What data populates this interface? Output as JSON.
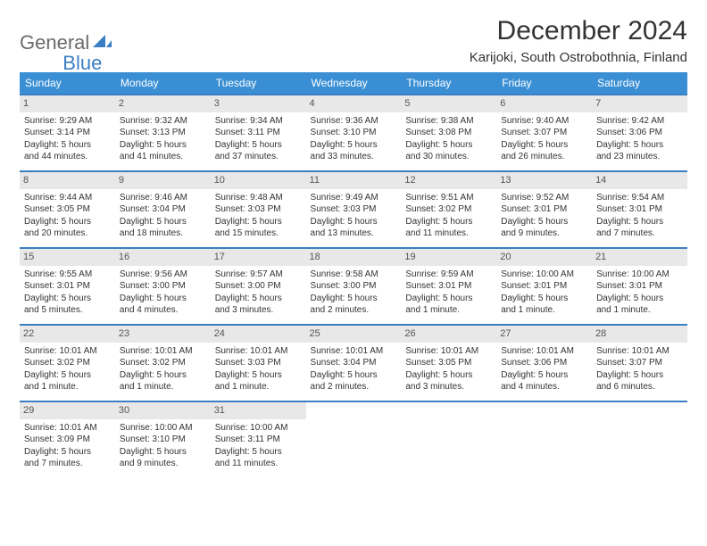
{
  "logo": {
    "part1": "General",
    "part2": "Blue"
  },
  "title": "December 2024",
  "location": "Karijoki, South Ostrobothnia, Finland",
  "colors": {
    "header_bg": "#3a8fd4",
    "header_text": "#ffffff",
    "border": "#3a7fc4",
    "daynum_bg": "#e8e8e8",
    "logo_gray": "#6b6b6b",
    "logo_blue": "#3a7fc4"
  },
  "weekdays": [
    "Sunday",
    "Monday",
    "Tuesday",
    "Wednesday",
    "Thursday",
    "Friday",
    "Saturday"
  ],
  "days": [
    {
      "n": "1",
      "sr": "Sunrise: 9:29 AM",
      "ss": "Sunset: 3:14 PM",
      "d1": "Daylight: 5 hours",
      "d2": "and 44 minutes."
    },
    {
      "n": "2",
      "sr": "Sunrise: 9:32 AM",
      "ss": "Sunset: 3:13 PM",
      "d1": "Daylight: 5 hours",
      "d2": "and 41 minutes."
    },
    {
      "n": "3",
      "sr": "Sunrise: 9:34 AM",
      "ss": "Sunset: 3:11 PM",
      "d1": "Daylight: 5 hours",
      "d2": "and 37 minutes."
    },
    {
      "n": "4",
      "sr": "Sunrise: 9:36 AM",
      "ss": "Sunset: 3:10 PM",
      "d1": "Daylight: 5 hours",
      "d2": "and 33 minutes."
    },
    {
      "n": "5",
      "sr": "Sunrise: 9:38 AM",
      "ss": "Sunset: 3:08 PM",
      "d1": "Daylight: 5 hours",
      "d2": "and 30 minutes."
    },
    {
      "n": "6",
      "sr": "Sunrise: 9:40 AM",
      "ss": "Sunset: 3:07 PM",
      "d1": "Daylight: 5 hours",
      "d2": "and 26 minutes."
    },
    {
      "n": "7",
      "sr": "Sunrise: 9:42 AM",
      "ss": "Sunset: 3:06 PM",
      "d1": "Daylight: 5 hours",
      "d2": "and 23 minutes."
    },
    {
      "n": "8",
      "sr": "Sunrise: 9:44 AM",
      "ss": "Sunset: 3:05 PM",
      "d1": "Daylight: 5 hours",
      "d2": "and 20 minutes."
    },
    {
      "n": "9",
      "sr": "Sunrise: 9:46 AM",
      "ss": "Sunset: 3:04 PM",
      "d1": "Daylight: 5 hours",
      "d2": "and 18 minutes."
    },
    {
      "n": "10",
      "sr": "Sunrise: 9:48 AM",
      "ss": "Sunset: 3:03 PM",
      "d1": "Daylight: 5 hours",
      "d2": "and 15 minutes."
    },
    {
      "n": "11",
      "sr": "Sunrise: 9:49 AM",
      "ss": "Sunset: 3:03 PM",
      "d1": "Daylight: 5 hours",
      "d2": "and 13 minutes."
    },
    {
      "n": "12",
      "sr": "Sunrise: 9:51 AM",
      "ss": "Sunset: 3:02 PM",
      "d1": "Daylight: 5 hours",
      "d2": "and 11 minutes."
    },
    {
      "n": "13",
      "sr": "Sunrise: 9:52 AM",
      "ss": "Sunset: 3:01 PM",
      "d1": "Daylight: 5 hours",
      "d2": "and 9 minutes."
    },
    {
      "n": "14",
      "sr": "Sunrise: 9:54 AM",
      "ss": "Sunset: 3:01 PM",
      "d1": "Daylight: 5 hours",
      "d2": "and 7 minutes."
    },
    {
      "n": "15",
      "sr": "Sunrise: 9:55 AM",
      "ss": "Sunset: 3:01 PM",
      "d1": "Daylight: 5 hours",
      "d2": "and 5 minutes."
    },
    {
      "n": "16",
      "sr": "Sunrise: 9:56 AM",
      "ss": "Sunset: 3:00 PM",
      "d1": "Daylight: 5 hours",
      "d2": "and 4 minutes."
    },
    {
      "n": "17",
      "sr": "Sunrise: 9:57 AM",
      "ss": "Sunset: 3:00 PM",
      "d1": "Daylight: 5 hours",
      "d2": "and 3 minutes."
    },
    {
      "n": "18",
      "sr": "Sunrise: 9:58 AM",
      "ss": "Sunset: 3:00 PM",
      "d1": "Daylight: 5 hours",
      "d2": "and 2 minutes."
    },
    {
      "n": "19",
      "sr": "Sunrise: 9:59 AM",
      "ss": "Sunset: 3:01 PM",
      "d1": "Daylight: 5 hours",
      "d2": "and 1 minute."
    },
    {
      "n": "20",
      "sr": "Sunrise: 10:00 AM",
      "ss": "Sunset: 3:01 PM",
      "d1": "Daylight: 5 hours",
      "d2": "and 1 minute."
    },
    {
      "n": "21",
      "sr": "Sunrise: 10:00 AM",
      "ss": "Sunset: 3:01 PM",
      "d1": "Daylight: 5 hours",
      "d2": "and 1 minute."
    },
    {
      "n": "22",
      "sr": "Sunrise: 10:01 AM",
      "ss": "Sunset: 3:02 PM",
      "d1": "Daylight: 5 hours",
      "d2": "and 1 minute."
    },
    {
      "n": "23",
      "sr": "Sunrise: 10:01 AM",
      "ss": "Sunset: 3:02 PM",
      "d1": "Daylight: 5 hours",
      "d2": "and 1 minute."
    },
    {
      "n": "24",
      "sr": "Sunrise: 10:01 AM",
      "ss": "Sunset: 3:03 PM",
      "d1": "Daylight: 5 hours",
      "d2": "and 1 minute."
    },
    {
      "n": "25",
      "sr": "Sunrise: 10:01 AM",
      "ss": "Sunset: 3:04 PM",
      "d1": "Daylight: 5 hours",
      "d2": "and 2 minutes."
    },
    {
      "n": "26",
      "sr": "Sunrise: 10:01 AM",
      "ss": "Sunset: 3:05 PM",
      "d1": "Daylight: 5 hours",
      "d2": "and 3 minutes."
    },
    {
      "n": "27",
      "sr": "Sunrise: 10:01 AM",
      "ss": "Sunset: 3:06 PM",
      "d1": "Daylight: 5 hours",
      "d2": "and 4 minutes."
    },
    {
      "n": "28",
      "sr": "Sunrise: 10:01 AM",
      "ss": "Sunset: 3:07 PM",
      "d1": "Daylight: 5 hours",
      "d2": "and 6 minutes."
    },
    {
      "n": "29",
      "sr": "Sunrise: 10:01 AM",
      "ss": "Sunset: 3:09 PM",
      "d1": "Daylight: 5 hours",
      "d2": "and 7 minutes."
    },
    {
      "n": "30",
      "sr": "Sunrise: 10:00 AM",
      "ss": "Sunset: 3:10 PM",
      "d1": "Daylight: 5 hours",
      "d2": "and 9 minutes."
    },
    {
      "n": "31",
      "sr": "Sunrise: 10:00 AM",
      "ss": "Sunset: 3:11 PM",
      "d1": "Daylight: 5 hours",
      "d2": "and 11 minutes."
    }
  ]
}
